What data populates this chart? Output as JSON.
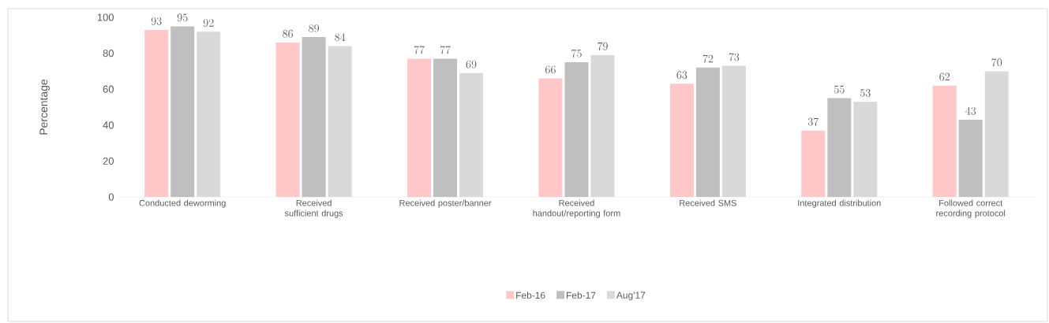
{
  "chart_data": {
    "type": "bar",
    "ylabel": "Percentage",
    "categories": [
      "Conducted deworming",
      "Received sufficient drugs",
      "Received poster/banner",
      "Received handout/reporting form",
      "Received SMS",
      "Integrated distribution",
      "Followed correct recording protocol"
    ],
    "series": [
      {
        "name": "Feb-16",
        "color": "#ffc7c7",
        "values": [
          93,
          86,
          77,
          66,
          63,
          37,
          62
        ]
      },
      {
        "name": "Feb-17",
        "color": "#bfbfbf",
        "values": [
          95,
          89,
          77,
          75,
          72,
          55,
          43
        ]
      },
      {
        "name": "Aug'17",
        "color": "#d9d9d9",
        "values": [
          92,
          84,
          69,
          79,
          73,
          53,
          70
        ]
      }
    ],
    "ylim": [
      0,
      100
    ],
    "yticks": [
      0,
      20,
      40,
      60,
      80,
      100
    ],
    "data_labels": true,
    "legend": "bottom",
    "grid": false
  }
}
